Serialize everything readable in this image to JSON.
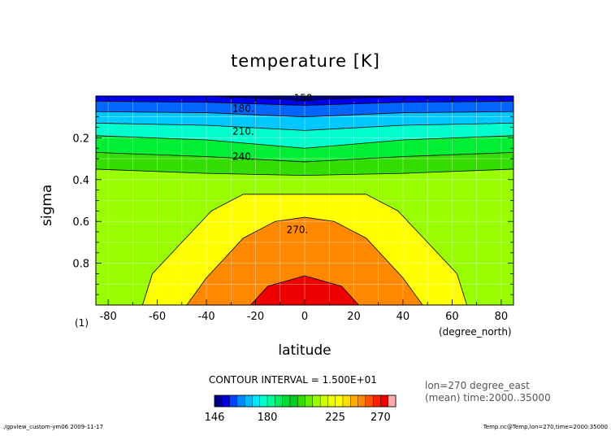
{
  "chart_data": {
    "type": "heatmap",
    "title": "temperature [K]",
    "xlabel": "latitude",
    "x_unit": "(degree_north)",
    "ylabel": "sigma",
    "y_unit": "(1)",
    "xlim": [
      -85,
      85
    ],
    "ylim": [
      0.0,
      1.0
    ],
    "y_inverted": true,
    "xticks": [
      -80,
      -60,
      -40,
      -20,
      0,
      20,
      40,
      60,
      80
    ],
    "yticks": [
      0.2,
      0.4,
      0.6,
      0.8
    ],
    "grid": true,
    "contour_interval_text": "CONTOUR INTERVAL = 1.500E+01",
    "contour_labels": [
      {
        "value": "150.",
        "x": 0,
        "y": 0.01
      },
      {
        "value": "180.",
        "x": -25,
        "y": 0.06
      },
      {
        "value": "210.",
        "x": -25,
        "y": 0.17
      },
      {
        "value": "240.",
        "x": -25,
        "y": 0.29
      },
      {
        "value": "270.",
        "x": -3,
        "y": 0.64
      }
    ],
    "contours": [
      {
        "level": 150,
        "points": [
          [
            -85,
            0.0
          ],
          [
            -40,
            0.0
          ],
          [
            0,
            0.02
          ],
          [
            40,
            0.0
          ],
          [
            85,
            0.0
          ]
        ]
      },
      {
        "level": 165,
        "points": [
          [
            -85,
            0.025
          ],
          [
            -40,
            0.03
          ],
          [
            0,
            0.045
          ],
          [
            40,
            0.03
          ],
          [
            85,
            0.025
          ]
        ]
      },
      {
        "level": 180,
        "points": [
          [
            -85,
            0.075
          ],
          [
            -40,
            0.08
          ],
          [
            0,
            0.1
          ],
          [
            40,
            0.08
          ],
          [
            85,
            0.075
          ]
        ]
      },
      {
        "level": 195,
        "points": [
          [
            -85,
            0.13
          ],
          [
            -40,
            0.14
          ],
          [
            0,
            0.165
          ],
          [
            40,
            0.14
          ],
          [
            85,
            0.13
          ]
        ]
      },
      {
        "level": 210,
        "points": [
          [
            -85,
            0.19
          ],
          [
            -40,
            0.21
          ],
          [
            0,
            0.25
          ],
          [
            40,
            0.21
          ],
          [
            85,
            0.19
          ]
        ]
      },
      {
        "level": 225,
        "points": [
          [
            -85,
            0.27
          ],
          [
            -40,
            0.29
          ],
          [
            0,
            0.315
          ],
          [
            40,
            0.29
          ],
          [
            85,
            0.27
          ]
        ]
      },
      {
        "level": 240,
        "points": [
          [
            -85,
            0.35
          ],
          [
            -40,
            0.37
          ],
          [
            0,
            0.38
          ],
          [
            40,
            0.37
          ],
          [
            85,
            0.35
          ]
        ]
      },
      {
        "level": 255,
        "points": [
          [
            -66,
            1.0
          ],
          [
            -62,
            0.85
          ],
          [
            -50,
            0.7
          ],
          [
            -38,
            0.55
          ],
          [
            -25,
            0.47
          ],
          [
            0,
            0.47
          ],
          [
            25,
            0.47
          ],
          [
            38,
            0.55
          ],
          [
            50,
            0.7
          ],
          [
            62,
            0.85
          ],
          [
            66,
            1.0
          ]
        ]
      },
      {
        "level": 270,
        "points": [
          [
            -48,
            1.0
          ],
          [
            -40,
            0.87
          ],
          [
            -25,
            0.68
          ],
          [
            -12,
            0.6
          ],
          [
            0,
            0.58
          ],
          [
            12,
            0.6
          ],
          [
            25,
            0.68
          ],
          [
            40,
            0.87
          ],
          [
            48,
            1.0
          ]
        ]
      },
      {
        "level": 285,
        "points": [
          [
            -22,
            1.0
          ],
          [
            -15,
            0.91
          ],
          [
            0,
            0.86
          ],
          [
            15,
            0.91
          ],
          [
            22,
            1.0
          ]
        ]
      }
    ],
    "color_levels": [
      146,
      150,
      155,
      160,
      165,
      170,
      175,
      180,
      185,
      190,
      195,
      200,
      205,
      210,
      215,
      220,
      225,
      230,
      240,
      250,
      260,
      265,
      270,
      280,
      290
    ],
    "colors": [
      "#000088",
      "#0000dd",
      "#0044ff",
      "#0088ff",
      "#00bbff",
      "#00e8ff",
      "#00ffcc",
      "#00ff99",
      "#00ee66",
      "#00dd33",
      "#00cc22",
      "#33dd00",
      "#66ee00",
      "#99ff00",
      "#ccff00",
      "#eeff00",
      "#ffff00",
      "#ffdd00",
      "#ffaa00",
      "#ff8800",
      "#ff5500",
      "#ff2200",
      "#ee0000",
      "#ffaaaa"
    ],
    "colorbar_ticks": [
      "146",
      "180",
      "225",
      "270"
    ],
    "meta_text_1": "lon=270 degree_east",
    "meta_text_2": "(mean) time:2000..35000",
    "footer_left": "./gpview_custom-ym06   2009-11-17",
    "footer_right": "Temp.nc@Temp,lon=270,time=2000:35000"
  }
}
